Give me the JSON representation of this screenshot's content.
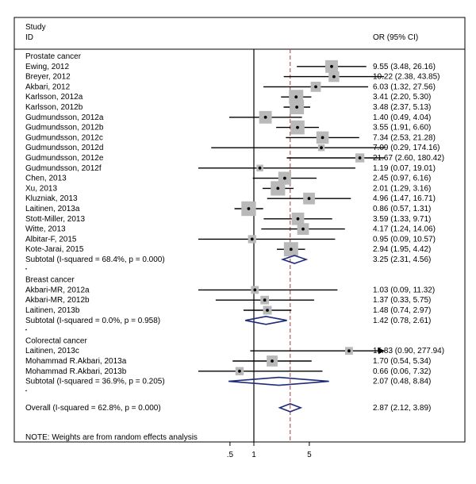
{
  "chart_data": {
    "type": "forest",
    "header": {
      "study": "Study",
      "id": "ID",
      "or_label": "OR (95% CI)"
    },
    "x_scale": "log",
    "xlim": [
      0.056,
      280
    ],
    "ticks": [
      {
        "value": 0.5,
        "label": ".5"
      },
      {
        "value": 1,
        "label": "1"
      },
      {
        "value": 5,
        "label": "5"
      }
    ],
    "null_line": 1,
    "overall_line": 2.87,
    "groups": [
      {
        "name": "Prostate cancer",
        "studies": [
          {
            "label": "Ewing, 2012",
            "or": 9.55,
            "lo": 3.48,
            "hi": 26.16,
            "weight": 5.2,
            "text": "9.55 (3.48, 26.16)"
          },
          {
            "label": "Breyer, 2012",
            "or": 10.22,
            "lo": 2.38,
            "hi": 43.85,
            "weight": 3.9,
            "text": "10.22 (2.38, 43.85)"
          },
          {
            "label": "Akbari, 2012",
            "or": 6.03,
            "lo": 1.32,
            "hi": 27.56,
            "weight": 3.6,
            "text": "6.03 (1.32, 27.56)"
          },
          {
            "label": "Karlsson, 2012a",
            "or": 3.41,
            "lo": 2.2,
            "hi": 5.3,
            "weight": 6.3,
            "text": "3.41 (2.20, 5.30)"
          },
          {
            "label": "Karlsson, 2012b",
            "or": 3.48,
            "lo": 2.37,
            "hi": 5.13,
            "weight": 6.3,
            "text": "3.48 (2.37, 5.13)"
          },
          {
            "label": "Gudmundsson, 2012a",
            "or": 1.4,
            "lo": 0.49,
            "hi": 4.04,
            "weight": 5.2,
            "text": "1.40 (0.49, 4.04)"
          },
          {
            "label": "Gudmundsson, 2012b",
            "or": 3.55,
            "lo": 1.91,
            "hi": 6.6,
            "weight": 6.1,
            "text": "3.55 (1.91, 6.60)"
          },
          {
            "label": "Gudmundsson, 2012c",
            "or": 7.34,
            "lo": 2.53,
            "hi": 21.28,
            "weight": 5.0,
            "text": "7.34 (2.53, 21.28)"
          },
          {
            "label": "Gudmundsson, 2012d",
            "or": 7.09,
            "lo": 0.29,
            "hi": 174.16,
            "weight": 1.3,
            "text": "7.09 (0.29, 174.16)"
          },
          {
            "label": "Gudmundsson, 2012e",
            "or": 21.67,
            "lo": 2.6,
            "hi": 180.42,
            "weight": 2.8,
            "text": "21.67 (2.60, 180.42)"
          },
          {
            "label": "Gudmundsson, 2012f",
            "or": 1.19,
            "lo": 0.07,
            "hi": 19.01,
            "weight": 1.3,
            "text": "1.19 (0.07, 19.01)"
          },
          {
            "label": "Chen, 2013",
            "or": 2.45,
            "lo": 0.97,
            "hi": 6.16,
            "weight": 5.4,
            "text": "2.45 (0.97, 6.16)"
          },
          {
            "label": "Xu, 2013",
            "or": 2.01,
            "lo": 1.29,
            "hi": 3.16,
            "weight": 6.4,
            "text": "2.01 (1.29, 3.16)"
          },
          {
            "label": "Kluzniak, 2013",
            "or": 4.96,
            "lo": 1.47,
            "hi": 16.71,
            "weight": 4.6,
            "text": "4.96 (1.47, 16.71)"
          },
          {
            "label": "Laitinen, 2013a",
            "or": 0.86,
            "lo": 0.57,
            "hi": 1.31,
            "weight": 6.5,
            "text": "0.86 (0.57, 1.31)"
          },
          {
            "label": "Stott-Miller, 2013",
            "or": 3.59,
            "lo": 1.33,
            "hi": 9.71,
            "weight": 5.1,
            "text": "3.59 (1.33, 9.71)"
          },
          {
            "label": "Witte, 2013",
            "or": 4.17,
            "lo": 1.24,
            "hi": 14.06,
            "weight": 4.6,
            "text": "4.17 (1.24, 14.06)"
          },
          {
            "label": "Albitar-F, 2015",
            "or": 0.95,
            "lo": 0.09,
            "hi": 10.57,
            "weight": 2.2,
            "text": "0.95 (0.09, 10.57)"
          },
          {
            "label": "Kote-Jarai, 2015",
            "or": 2.94,
            "lo": 1.95,
            "hi": 4.42,
            "weight": 6.3,
            "text": "2.94 (1.95, 4.42)"
          }
        ],
        "subtotal": {
          "label": "Subtotal (I-squared = 68.4%, p = 0.000)",
          "or": 3.25,
          "lo": 2.31,
          "hi": 4.56,
          "text": "3.25 (2.31, 4.56)"
        }
      },
      {
        "name": "Breast cancer",
        "studies": [
          {
            "label": "Akbari-MR, 2012a",
            "or": 1.03,
            "lo": 0.09,
            "hi": 11.32,
            "weight": 2.0,
            "text": "1.03 (0.09, 11.32)"
          },
          {
            "label": "Akbari-MR, 2012b",
            "or": 1.37,
            "lo": 0.33,
            "hi": 5.75,
            "weight": 2.5,
            "text": "1.37 (0.33, 5.75)"
          },
          {
            "label": "Laitinen, 2013b",
            "or": 1.48,
            "lo": 0.74,
            "hi": 2.97,
            "weight": 2.6,
            "text": "1.48 (0.74, 2.97)"
          }
        ],
        "subtotal": {
          "label": "Subtotal (I-squared = 0.0%, p = 0.958)",
          "or": 1.42,
          "lo": 0.78,
          "hi": 2.61,
          "text": "1.42 (0.78, 2.61)"
        }
      },
      {
        "name": "Colorectal cancer",
        "studies": [
          {
            "label": "Laitinen, 2013c",
            "or": 15.83,
            "lo": 0.9,
            "hi": 277.94,
            "weight": 2.0,
            "arrow": true,
            "text": "15.83 (0.90, 277.94)"
          },
          {
            "label": "Mohammad R.Akbari, 2013a",
            "or": 1.7,
            "lo": 0.54,
            "hi": 5.34,
            "weight": 4.1,
            "text": "1.70 (0.54, 5.34)"
          },
          {
            "label": "Mohammad R.Akbari, 2013b",
            "or": 0.66,
            "lo": 0.06,
            "hi": 7.32,
            "weight": 2.3,
            "text": "0.66 (0.06, 7.32)"
          }
        ],
        "subtotal": {
          "label": "Subtotal (I-squared = 36.9%, p = 0.205)",
          "or": 2.07,
          "lo": 0.48,
          "hi": 8.84,
          "text": "2.07 (0.48, 8.84)"
        }
      }
    ],
    "overall": {
      "label": "Overall (I-squared = 62.8%, p = 0.000)",
      "or": 2.87,
      "lo": 2.12,
      "hi": 3.89,
      "text": "2.87 (2.12, 3.89)"
    },
    "note": "NOTE: Weights are from random effects analysis"
  }
}
